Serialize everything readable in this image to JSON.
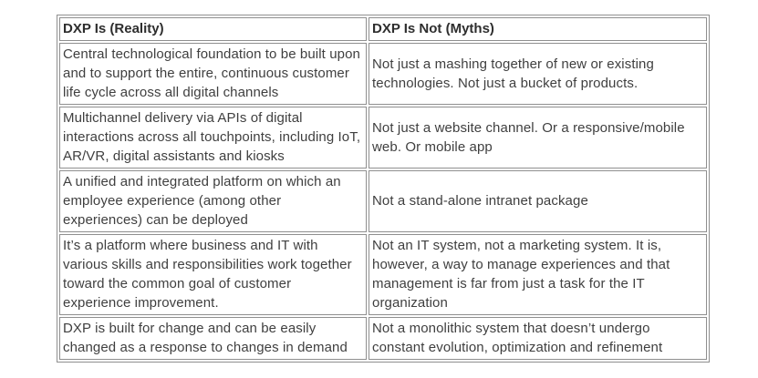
{
  "table": {
    "columns": [
      {
        "header": "DXP Is (Reality)"
      },
      {
        "header": "DXP Is Not (Myths)"
      }
    ],
    "rows": [
      {
        "reality": "Central technological foundation to be built upon and to support the entire, continuous customer life cycle across all digital channels",
        "myth": "Not just a mashing together of new or existing technologies. Not just a bucket of products."
      },
      {
        "reality": "Multichannel delivery via APIs of digital interactions across all touchpoints, including IoT, AR/VR, digital assistants and kiosks",
        "myth": "Not just a website channel. Or a responsive/mobile web. Or mobile app"
      },
      {
        "reality": "A unified and integrated platform on which an employee experience (among other experiences) can be deployed",
        "myth": "Not a stand-alone intranet package"
      },
      {
        "reality": "It’s a platform where business and IT with various skills and responsibilities work together toward the common goal of customer experience improvement.",
        "myth": "Not an IT system, not a marketing system. It is, however, a way to manage experiences and that management is far from just a task for the IT organization"
      },
      {
        "reality": "DXP is built for change and can be easily changed as a response to changes in demand",
        "myth": "Not a monolithic system that doesn’t undergo constant evolution, optimization and refinement"
      }
    ]
  },
  "colors": {
    "border": "#8f8f8f",
    "header_text": "#2e2e2e",
    "body_text": "#3f3f3f",
    "background": "#ffffff"
  }
}
